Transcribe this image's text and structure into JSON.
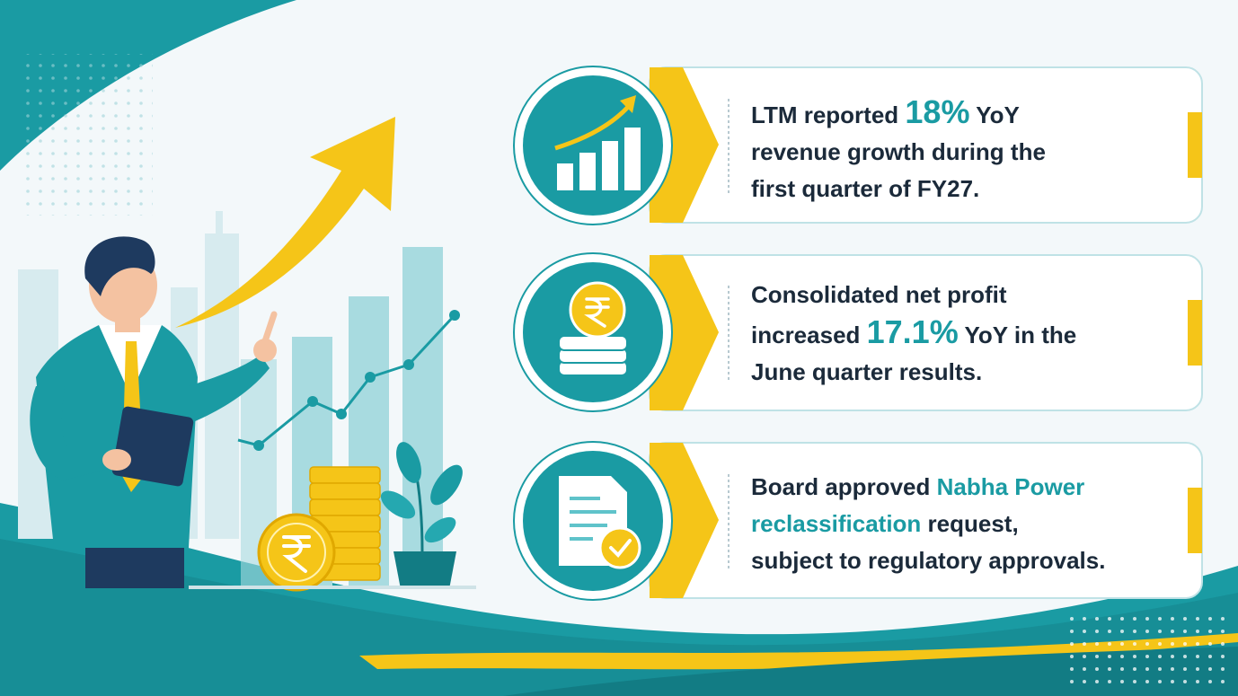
{
  "cards": [
    {
      "lines": [
        [
          {
            "text": "LTM reported "
          },
          {
            "text": "18%",
            "highlight": "big"
          },
          {
            "text": " YoY"
          }
        ],
        [
          {
            "text": "revenue growth during the"
          }
        ],
        [
          {
            "text": "first quarter of FY27."
          }
        ]
      ]
    },
    {
      "lines": [
        [
          {
            "text": "Consolidated net profit"
          }
        ],
        [
          {
            "text": "increased "
          },
          {
            "text": "17.1%",
            "highlight": "big"
          },
          {
            "text": " YoY in the"
          }
        ],
        [
          {
            "text": "June quarter results."
          }
        ]
      ]
    },
    {
      "lines": [
        [
          {
            "text": "Board approved "
          },
          {
            "text": "Nabha Power",
            "highlight": "color"
          }
        ],
        [
          {
            "text": "reclassification",
            "highlight": "color"
          },
          {
            "text": " request,"
          }
        ],
        [
          {
            "text": "subject to regulatory approvals."
          }
        ]
      ]
    }
  ]
}
